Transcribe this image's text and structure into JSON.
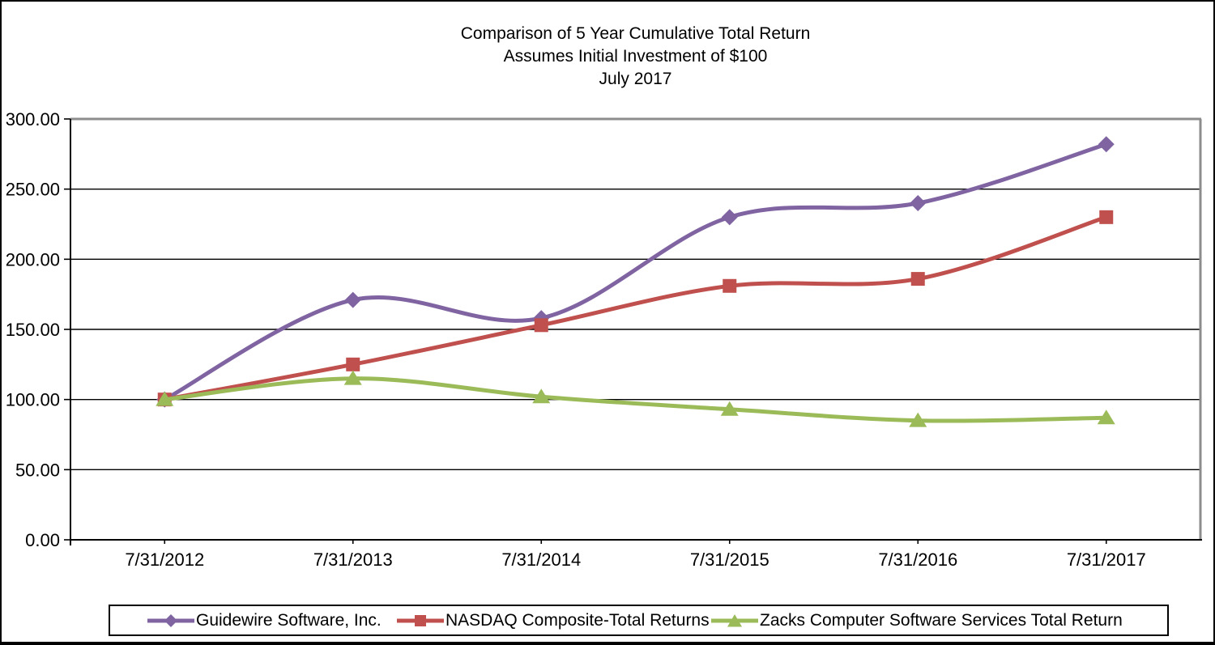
{
  "window": {
    "background": "#ffffff",
    "frame_border_color": "#000000"
  },
  "chart_data": {
    "type": "line",
    "title": "Comparison of 5 Year Cumulative Total Return",
    "title_lines": [
      "Comparison of 5 Year Cumulative Total Return",
      "Assumes Initial Investment of $100",
      "July 2017"
    ],
    "categories": [
      "7/31/2012",
      "7/31/2013",
      "7/31/2014",
      "7/31/2015",
      "7/31/2016",
      "7/31/2017"
    ],
    "series": [
      {
        "name": "Guidewire Software, Inc.",
        "marker": "diamond",
        "color": "#8064A2",
        "values": [
          100,
          171,
          158,
          230,
          240,
          282
        ]
      },
      {
        "name": "NASDAQ Composite-Total Returns",
        "marker": "square",
        "color": "#C0504D",
        "values": [
          100,
          125,
          153,
          181,
          186,
          230
        ]
      },
      {
        "name": "Zacks Computer Software Services Total Return",
        "marker": "triangle",
        "color": "#9BBB59",
        "values": [
          100,
          115,
          102,
          93,
          85,
          87
        ]
      }
    ],
    "ylim": [
      0,
      300
    ],
    "ytick_step": 50,
    "ytick_labels": [
      "0.00",
      "50.00",
      "100.00",
      "150.00",
      "200.00",
      "250.00",
      "300.00"
    ],
    "xlabel": "",
    "ylabel": "",
    "grid": true,
    "gridline_color": "#000000",
    "plot_border_color": "#8C8C8C",
    "axis_line_color": "#000000",
    "smoothed_lines": true,
    "legend_position": "bottom"
  }
}
